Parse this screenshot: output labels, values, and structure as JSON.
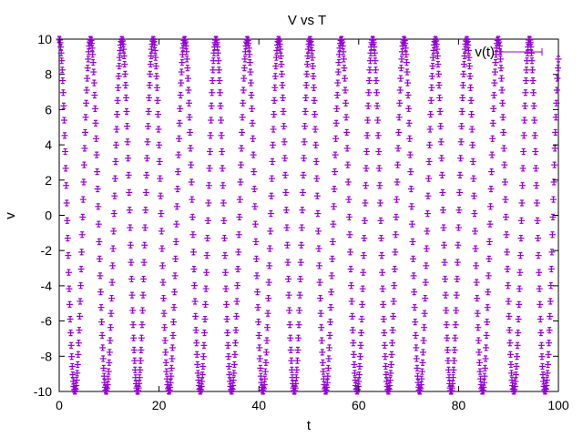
{
  "chart_data": {
    "type": "scatter",
    "title": "V vs T",
    "xlabel": "t",
    "ylabel": "v",
    "xlim": [
      0,
      100
    ],
    "ylim": [
      -10,
      10
    ],
    "xticks": [
      0,
      20,
      40,
      60,
      80,
      100
    ],
    "yticks": [
      -10,
      -8,
      -6,
      -4,
      -2,
      0,
      2,
      4,
      6,
      8,
      10
    ],
    "grid": false,
    "legend_position": "top-right",
    "series": [
      {
        "name": "v(t)",
        "color": "#9400d3",
        "marker": "plus-with-errorbars",
        "amplitude": 10,
        "period": 6.28,
        "t_start": 0,
        "t_end": 100,
        "t_step": 0.1
      }
    ]
  }
}
